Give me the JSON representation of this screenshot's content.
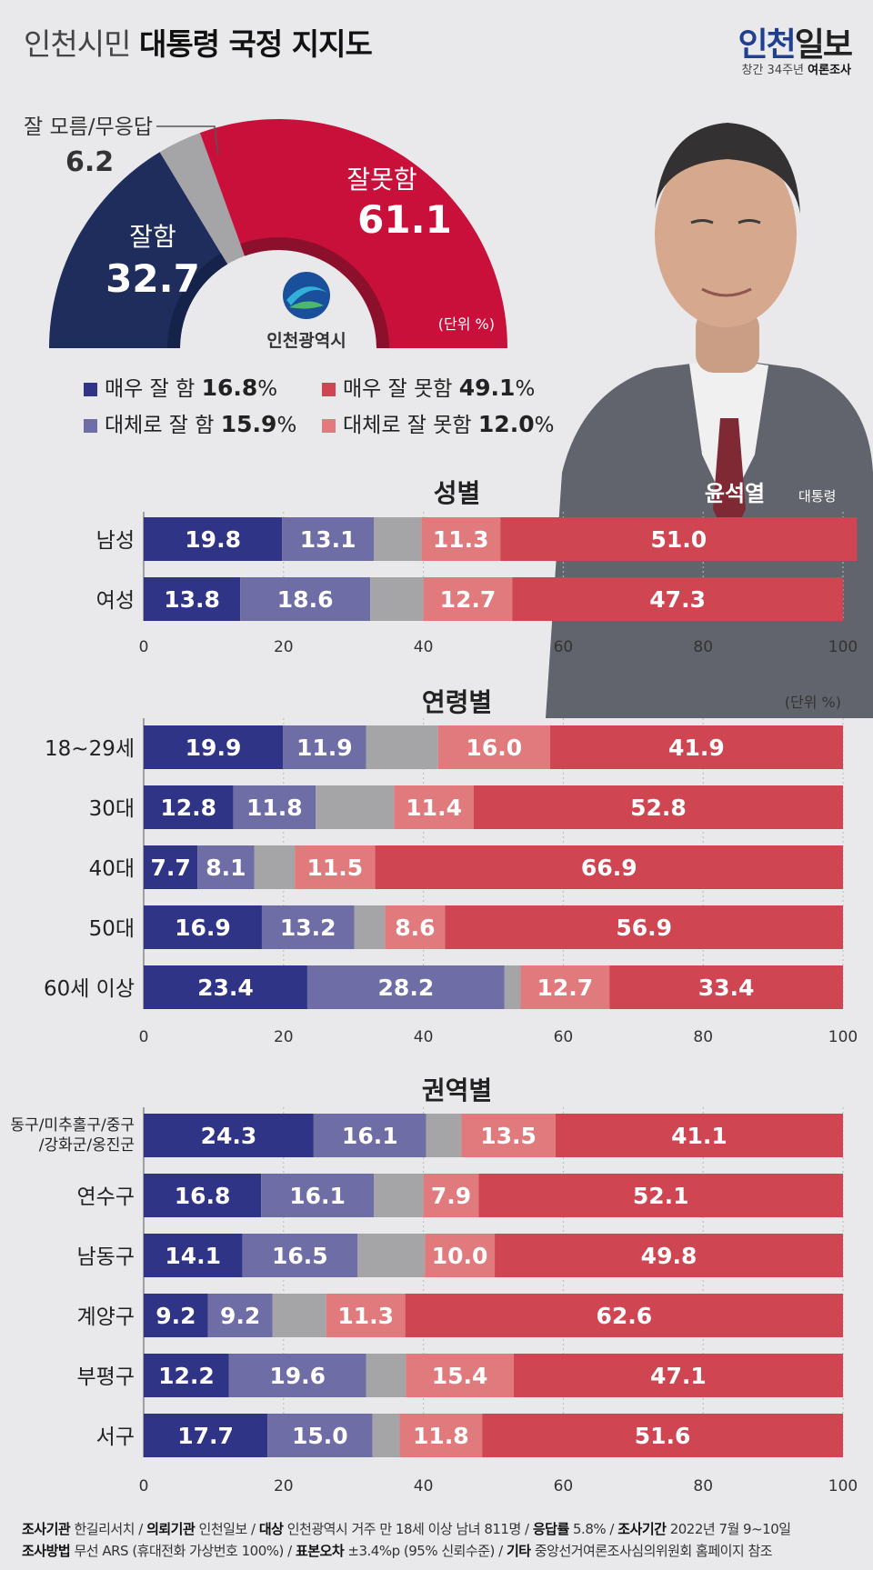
{
  "header": {
    "title_light": "인천시민",
    "title_bold": "대통령 국정 지지도",
    "logo_part1": "인천",
    "logo_part2": "일보",
    "logo_sub_light": "창간 34주년",
    "logo_sub_bold": "여론조사"
  },
  "colors": {
    "very_good": "#2f3486",
    "fairly_good": "#6e6da6",
    "dont_know": "#a5a5a7",
    "fairly_bad": "#e07a7c",
    "very_bad": "#cf4652",
    "gauge_good": "#1f2d5c",
    "gauge_bad": "#c8103a"
  },
  "gauge": {
    "good_label": "잘함",
    "good_value": 32.7,
    "bad_label": "잘못함",
    "bad_value": 61.1,
    "dk_label": "잘 모름/무응답",
    "dk_value": 6.2,
    "unit": "(단위 %)",
    "emblem_text": "인천광역시"
  },
  "legend": [
    {
      "label": "매우 잘 함",
      "value": "16.8",
      "unit": "%"
    },
    {
      "label": "대체로  잘 함",
      "value": "15.9",
      "unit": "%"
    },
    {
      "label": "매우 잘 못함",
      "value": "49.1",
      "unit": "%"
    },
    {
      "label": "대체로 잘 못함",
      "value": "12.0",
      "unit": "%"
    }
  ],
  "photo_caption": {
    "name": "윤석열",
    "title": "대통령"
  },
  "chart_data": [
    {
      "type": "bar",
      "title": "성별",
      "categories": [
        "남성",
        "여성"
      ],
      "series": [
        {
          "values": [
            19.8,
            13.8
          ]
        },
        {
          "values": [
            13.1,
            18.6
          ]
        },
        {
          "values": [
            6.8,
            7.6
          ]
        },
        {
          "values": [
            11.3,
            12.7
          ]
        },
        {
          "values": [
            51.0,
            47.3
          ]
        }
      ],
      "xlim": [
        0,
        100
      ],
      "xticks": [
        0,
        20,
        40,
        60,
        80,
        100
      ],
      "unit": ""
    },
    {
      "type": "bar",
      "title": "연령별",
      "categories": [
        "18~29세",
        "30대",
        "40대",
        "50대",
        "60세 이상"
      ],
      "series": [
        {
          "values": [
            19.9,
            12.8,
            7.7,
            16.9,
            23.4
          ]
        },
        {
          "values": [
            11.9,
            11.8,
            8.1,
            13.2,
            28.2
          ]
        },
        {
          "values": [
            10.3,
            11.2,
            5.8,
            4.4,
            2.3
          ]
        },
        {
          "values": [
            16.0,
            11.4,
            11.5,
            8.6,
            12.7
          ]
        },
        {
          "values": [
            41.9,
            52.8,
            66.9,
            56.9,
            33.4
          ]
        }
      ],
      "xlim": [
        0,
        100
      ],
      "xticks": [
        0,
        20,
        40,
        60,
        80,
        100
      ],
      "unit": "(단위 %)"
    },
    {
      "type": "bar",
      "title": "권역별",
      "categories": [
        "동구/미추홀구/중구\n/강화군/옹진군",
        "연수구",
        "남동구",
        "계양구",
        "부평구",
        "서구"
      ],
      "series": [
        {
          "values": [
            24.3,
            16.8,
            14.1,
            9.2,
            12.2,
            17.7
          ]
        },
        {
          "values": [
            16.1,
            16.1,
            16.5,
            9.2,
            19.6,
            15.0
          ]
        },
        {
          "values": [
            5.0,
            7.1,
            9.6,
            7.7,
            5.7,
            3.9
          ]
        },
        {
          "values": [
            13.5,
            7.9,
            10.0,
            11.3,
            15.4,
            11.8
          ]
        },
        {
          "values": [
            41.1,
            52.1,
            49.8,
            62.6,
            47.1,
            51.6
          ]
        }
      ],
      "xlim": [
        0,
        100
      ],
      "xticks": [
        0,
        20,
        40,
        60,
        80,
        100
      ],
      "unit": ""
    }
  ],
  "footer": {
    "line1": [
      {
        "k": "조사기관",
        "v": "한길리서치"
      },
      {
        "k": "의뢰기관",
        "v": "인천일보"
      },
      {
        "k": "대상",
        "v": "인천광역시 거주 만 18세 이상 남녀 811명"
      },
      {
        "k": "응답률",
        "v": "5.8%"
      },
      {
        "k": "조사기간",
        "v": "2022년 7월 9~10일"
      }
    ],
    "line2": [
      {
        "k": "조사방법",
        "v": "무선 ARS (휴대전화 가상번호 100%)"
      },
      {
        "k": "표본오차",
        "v": "±3.4%p (95% 신뢰수준)"
      },
      {
        "k": "기타",
        "v": "중앙선거여론조사심의위원회 홈페이지 참조"
      }
    ]
  }
}
